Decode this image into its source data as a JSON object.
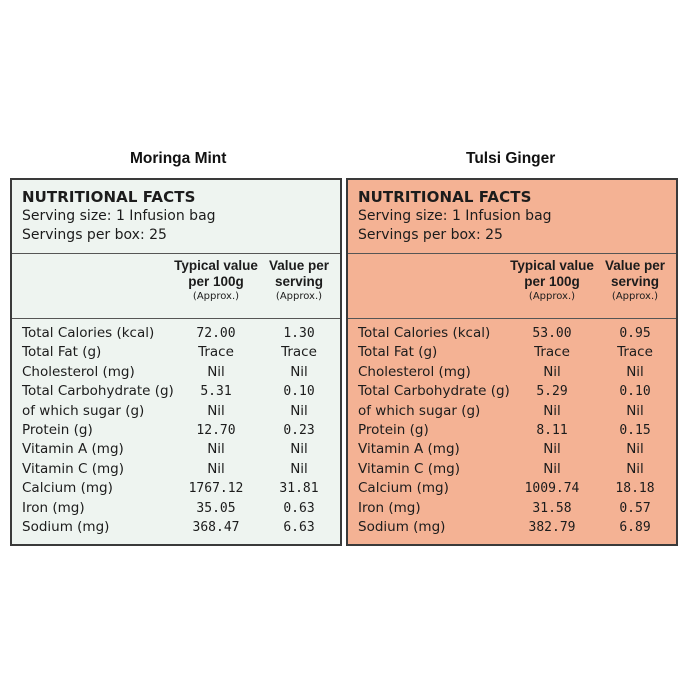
{
  "panels": [
    {
      "title": "Moringa Mint",
      "background": "#eef4f0",
      "heading": "NUTRITIONAL FACTS",
      "serving_size": "Serving size: 1 Infusion bag",
      "servings_per_box": "Servings per box: 25",
      "col1_title_line1": "Typical value",
      "col1_title_line2": "per 100g",
      "col1_note": "(Approx.)",
      "col2_title_line1": "Value per",
      "col2_title_line2": "serving",
      "col2_note": "(Approx.)",
      "rows": [
        {
          "label": "Total Calories (kcal)",
          "per100": "72.00",
          "serving": "1.30"
        },
        {
          "label": "Total Fat (g)",
          "per100": "Trace",
          "serving": "Trace"
        },
        {
          "label": "Cholesterol (mg)",
          "per100": "Nil",
          "serving": "Nil"
        },
        {
          "label": "Total Carbohydrate (g)",
          "per100": "5.31",
          "serving": "0.10"
        },
        {
          "label": "of which sugar (g)",
          "per100": "Nil",
          "serving": "Nil"
        },
        {
          "label": "Protein (g)",
          "per100": "12.70",
          "serving": "0.23"
        },
        {
          "label": "Vitamin A (mg)",
          "per100": "Nil",
          "serving": "Nil"
        },
        {
          "label": "Vitamin C (mg)",
          "per100": "Nil",
          "serving": "Nil"
        },
        {
          "label": "Calcium (mg)",
          "per100": "1767.12",
          "serving": "31.81"
        },
        {
          "label": "Iron (mg)",
          "per100": "35.05",
          "serving": "0.63"
        },
        {
          "label": "Sodium (mg)",
          "per100": "368.47",
          "serving": "6.63"
        }
      ]
    },
    {
      "title": "Tulsi Ginger",
      "background": "#f4b294",
      "heading": "NUTRITIONAL FACTS",
      "serving_size": "Serving size: 1 Infusion bag",
      "servings_per_box": "Servings per box: 25",
      "col1_title_line1": "Typical value",
      "col1_title_line2": "per 100g",
      "col1_note": "(Approx.)",
      "col2_title_line1": "Value per",
      "col2_title_line2": "serving",
      "col2_note": "(Approx.)",
      "rows": [
        {
          "label": "Total Calories (kcal)",
          "per100": "53.00",
          "serving": "0.95"
        },
        {
          "label": "Total Fat (g)",
          "per100": "Trace",
          "serving": "Trace"
        },
        {
          "label": "Cholesterol (mg)",
          "per100": "Nil",
          "serving": "Nil"
        },
        {
          "label": "Total Carbohydrate (g)",
          "per100": "5.29",
          "serving": "0.10"
        },
        {
          "label": "of which sugar (g)",
          "per100": "Nil",
          "serving": "Nil"
        },
        {
          "label": "Protein (g)",
          "per100": "8.11",
          "serving": "0.15"
        },
        {
          "label": "Vitamin A (mg)",
          "per100": "Nil",
          "serving": "Nil"
        },
        {
          "label": "Vitamin C (mg)",
          "per100": "Nil",
          "serving": "Nil"
        },
        {
          "label": "Calcium (mg)",
          "per100": "1009.74",
          "serving": "18.18"
        },
        {
          "label": "Iron (mg)",
          "per100": "31.58",
          "serving": "0.57"
        },
        {
          "label": "Sodium (mg)",
          "per100": "382.79",
          "serving": "6.89"
        }
      ]
    }
  ]
}
